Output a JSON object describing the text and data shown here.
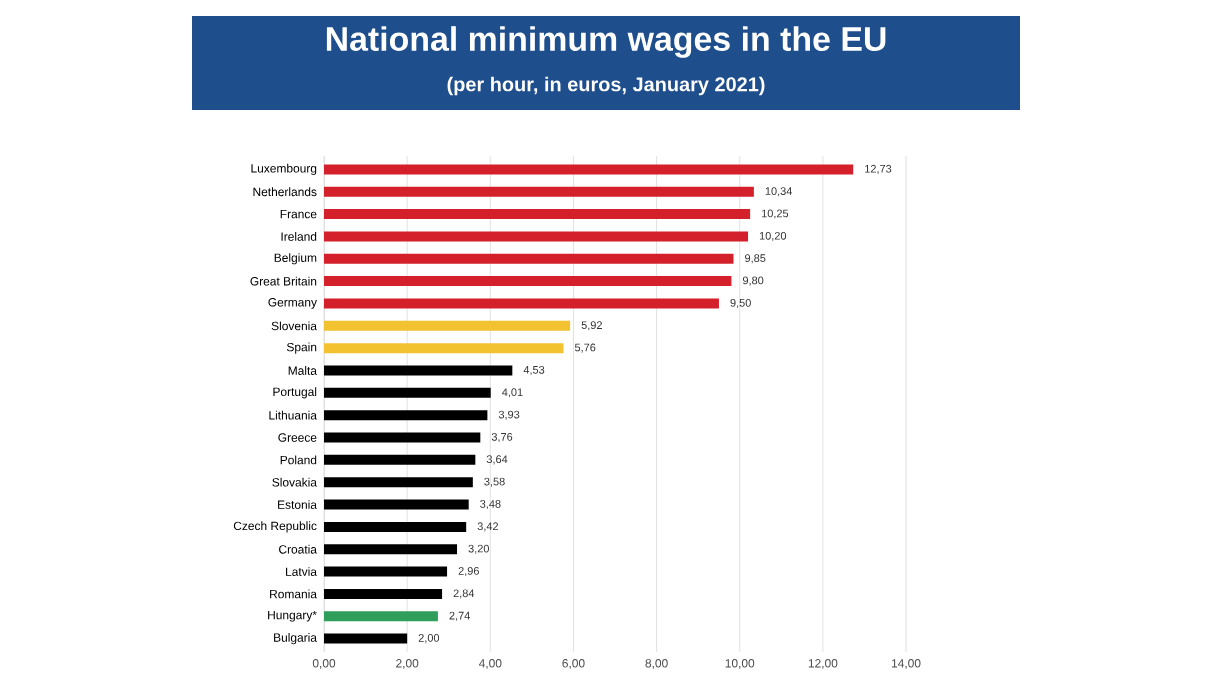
{
  "chart_data": {
    "type": "bar",
    "orientation": "horizontal",
    "title": "National minimum wages in the EU",
    "subtitle": "(per hour, in euros, January 2021)",
    "categories": [
      "Luxembourg",
      "Netherlands",
      "France",
      "Ireland",
      "Belgium",
      "Great Britain",
      "Germany",
      "Slovenia",
      "Spain",
      "Malta",
      "Portugal",
      "Lithuania",
      "Greece",
      "Poland",
      "Slovakia",
      "Estonia",
      "Czech Republic",
      "Croatia",
      "Latvia",
      "Romania",
      "Hungary*",
      "Bulgaria"
    ],
    "values": [
      12.73,
      10.34,
      10.25,
      10.2,
      9.85,
      9.8,
      9.5,
      5.92,
      5.76,
      4.53,
      4.01,
      3.93,
      3.76,
      3.64,
      3.58,
      3.48,
      3.42,
      3.2,
      2.96,
      2.84,
      2.74,
      2.0
    ],
    "value_labels": [
      "12,73",
      "10,34",
      "10,25",
      "10,20",
      "9,85",
      "9,80",
      "9,50",
      "5,92",
      "5,76",
      "4,53",
      "4,01",
      "3,93",
      "3,76",
      "3,64",
      "3,58",
      "3,48",
      "3,42",
      "3,20",
      "2,96",
      "2,84",
      "2,74",
      "2,00"
    ],
    "colors": [
      "#d3202a",
      "#d3202a",
      "#d3202a",
      "#d3202a",
      "#d3202a",
      "#d3202a",
      "#d3202a",
      "#f2c230",
      "#f2c230",
      "#000000",
      "#000000",
      "#000000",
      "#000000",
      "#000000",
      "#000000",
      "#000000",
      "#000000",
      "#000000",
      "#000000",
      "#000000",
      "#2e9e5a",
      "#000000"
    ],
    "xlim": [
      0,
      14
    ],
    "xticks": [
      {
        "value": 0,
        "label": "0,00"
      },
      {
        "value": 2,
        "label": "2,00"
      },
      {
        "value": 4,
        "label": "4,00"
      },
      {
        "value": 6,
        "label": "6,00"
      },
      {
        "value": 8,
        "label": "8,00"
      },
      {
        "value": 10,
        "label": "10,00"
      },
      {
        "value": 12,
        "label": "12,00"
      },
      {
        "value": 14,
        "label": "14,00"
      }
    ],
    "grid": "x"
  }
}
